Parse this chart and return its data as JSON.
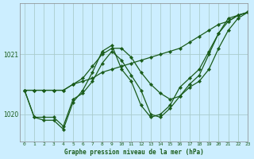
{
  "title": "Graphe pression niveau de la mer (hPa)",
  "background_color": "#cceeff",
  "line_color": "#1a5c1a",
  "grid_color": "#aacccc",
  "xlim": [
    -0.5,
    23
  ],
  "ylim": [
    1019.55,
    1021.85
  ],
  "yticks": [
    1020,
    1021
  ],
  "xticks": [
    0,
    1,
    2,
    3,
    4,
    5,
    6,
    7,
    8,
    9,
    10,
    11,
    12,
    13,
    14,
    15,
    16,
    17,
    18,
    19,
    20,
    21,
    22,
    23
  ],
  "series": [
    [
      1020.4,
      1020.4,
      1020.4,
      1020.4,
      1020.4,
      1020.5,
      1020.55,
      1020.6,
      1020.7,
      1020.75,
      1020.8,
      1020.85,
      1020.9,
      1020.95,
      1021.0,
      1021.05,
      1021.1,
      1021.2,
      1021.3,
      1021.4,
      1021.5,
      1021.55,
      1021.65,
      1021.7
    ],
    [
      1020.4,
      1020.4,
      1020.4,
      1020.4,
      1020.4,
      1020.5,
      1020.6,
      1020.8,
      1021.0,
      1021.1,
      1021.1,
      1020.95,
      1020.7,
      1020.5,
      1020.35,
      1020.25,
      1020.3,
      1020.45,
      1020.55,
      1020.75,
      1021.1,
      1021.4,
      1021.6,
      1021.7
    ],
    [
      1020.4,
      1019.95,
      1019.95,
      1019.95,
      1019.8,
      1020.25,
      1020.35,
      1020.55,
      1020.85,
      1021.05,
      1020.9,
      1020.65,
      1020.4,
      1020.0,
      1019.95,
      1020.1,
      1020.3,
      1020.5,
      1020.65,
      1021.0,
      1021.35,
      1021.55,
      1021.65,
      1021.7
    ],
    [
      1020.4,
      1019.95,
      1019.9,
      1019.9,
      1019.75,
      1020.2,
      1020.4,
      1020.7,
      1021.05,
      1021.15,
      1020.75,
      1020.55,
      1020.15,
      1019.95,
      1020.0,
      1020.15,
      1020.45,
      1020.6,
      1020.75,
      1021.05,
      1021.35,
      1021.6,
      1021.65,
      1021.7
    ]
  ]
}
